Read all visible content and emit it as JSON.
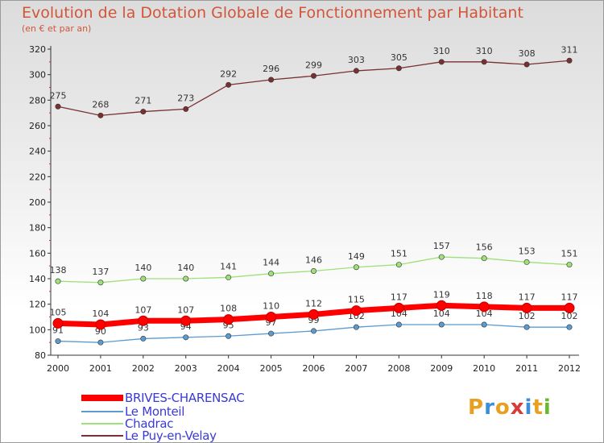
{
  "header": {
    "title": "Evolution de la Dotation Globale de Fonctionnement par Habitant",
    "subtitle": "(en € et par an)"
  },
  "logo": {
    "text": "Proxiti",
    "colors": [
      "#e8a020",
      "#3a8fd8",
      "#e8a020",
      "#d83a3a",
      "#3a8fd8",
      "#e8a020",
      "#6ab830"
    ]
  },
  "chart_data": {
    "type": "line",
    "categories": [
      "2000",
      "2001",
      "2002",
      "2003",
      "2004",
      "2005",
      "2006",
      "2007",
      "2008",
      "2009",
      "2010",
      "2011",
      "2012"
    ],
    "ylim": [
      80,
      320
    ],
    "yticks": [
      80,
      100,
      120,
      140,
      160,
      180,
      200,
      220,
      240,
      260,
      280,
      300,
      320
    ],
    "ytick_labels": [
      "80",
      "100",
      "120",
      "140",
      "160",
      "180",
      "200",
      "220",
      "240",
      "260",
      "280",
      "300",
      "320"
    ],
    "grid": false,
    "legend_position": "bottom-left",
    "series": [
      {
        "name": "BRIVES-CHARENSAC",
        "color": "#ff0000",
        "values": [
          105,
          104,
          107,
          107,
          108,
          110,
          112,
          115,
          117,
          119,
          118,
          117,
          117
        ],
        "labels": [
          "105",
          "104",
          "107",
          "107",
          "108",
          "110",
          "112",
          "115",
          "117",
          "119",
          "118",
          "117",
          "117"
        ],
        "bold": true
      },
      {
        "name": "Le Monteil",
        "color": "#5b9bd0",
        "values": [
          91,
          90,
          93,
          94,
          95,
          97,
          99,
          102,
          104,
          104,
          104,
          102,
          102
        ],
        "labels": [
          "91",
          "90",
          "93",
          "94",
          "95",
          "97",
          "99",
          "102",
          "104",
          "104",
          "104",
          "102",
          "102"
        ],
        "bold": false
      },
      {
        "name": "Chadrac",
        "color": "#9ee07a",
        "values": [
          138,
          137,
          140,
          140,
          141,
          144,
          146,
          149,
          151,
          157,
          156,
          153,
          151
        ],
        "labels": [
          "138",
          "137",
          "140",
          "140",
          "141",
          "144",
          "146",
          "149",
          "151",
          "157",
          "156",
          "153",
          "151"
        ],
        "bold": false
      },
      {
        "name": "Le Puy-en-Velay",
        "color": "#7a3030",
        "values": [
          275,
          268,
          271,
          273,
          292,
          296,
          299,
          303,
          305,
          310,
          310,
          308,
          311
        ],
        "labels": [
          "275",
          "268",
          "271",
          "273",
          "292",
          "296",
          "299",
          "303",
          "305",
          "310",
          "310",
          "308",
          "311"
        ],
        "bold": false
      }
    ]
  }
}
